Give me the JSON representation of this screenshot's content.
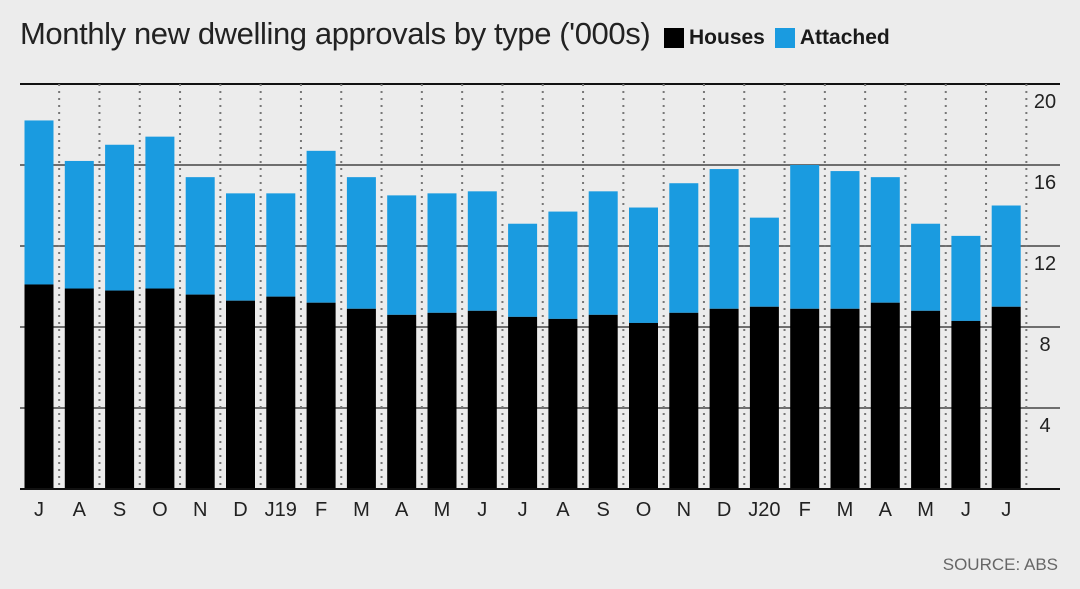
{
  "title": "Monthly new dwelling approvals by type ('000s)",
  "source": "SOURCE: ABS",
  "colors": {
    "houses": "#000000",
    "attached": "#1a9be0",
    "background": "#ececec"
  },
  "chart_data": {
    "type": "bar",
    "stacked": true,
    "title": "Monthly new dwelling approvals by type ('000s)",
    "categories": [
      "J",
      "A",
      "S",
      "O",
      "N",
      "D",
      "J19",
      "F",
      "M",
      "A",
      "M",
      "J",
      "J",
      "A",
      "S",
      "O",
      "N",
      "D",
      "J20",
      "F",
      "M",
      "A",
      "M",
      "J",
      "J"
    ],
    "series": [
      {
        "name": "Houses",
        "color": "#000000",
        "values": [
          10.1,
          9.9,
          9.8,
          9.9,
          9.6,
          9.3,
          9.5,
          9.2,
          8.9,
          8.6,
          8.7,
          8.8,
          8.5,
          8.4,
          8.6,
          8.2,
          8.7,
          8.9,
          9.0,
          8.9,
          8.9,
          9.2,
          8.8,
          8.3,
          9.0
        ]
      },
      {
        "name": "Attached",
        "color": "#1a9be0",
        "values": [
          8.1,
          6.3,
          7.2,
          7.5,
          5.8,
          5.3,
          5.1,
          7.5,
          6.5,
          5.9,
          5.9,
          5.9,
          4.6,
          5.3,
          6.1,
          5.7,
          6.4,
          6.9,
          4.4,
          7.1,
          6.8,
          6.2,
          4.3,
          4.2,
          5.0
        ]
      }
    ],
    "totals": [
      18.2,
      16.2,
      17.0,
      17.4,
      15.4,
      14.6,
      14.6,
      16.7,
      15.4,
      14.5,
      14.6,
      14.7,
      13.1,
      13.7,
      14.7,
      13.9,
      15.1,
      15.8,
      13.4,
      16.0,
      15.7,
      15.4,
      13.1,
      12.5,
      14.0
    ],
    "ylim": [
      0,
      20
    ],
    "yticks": [
      "4",
      "8",
      "12",
      "16",
      "20"
    ],
    "ytick_values": [
      4,
      8,
      12,
      16,
      20
    ],
    "y_axis_side": "right",
    "grid": true
  }
}
